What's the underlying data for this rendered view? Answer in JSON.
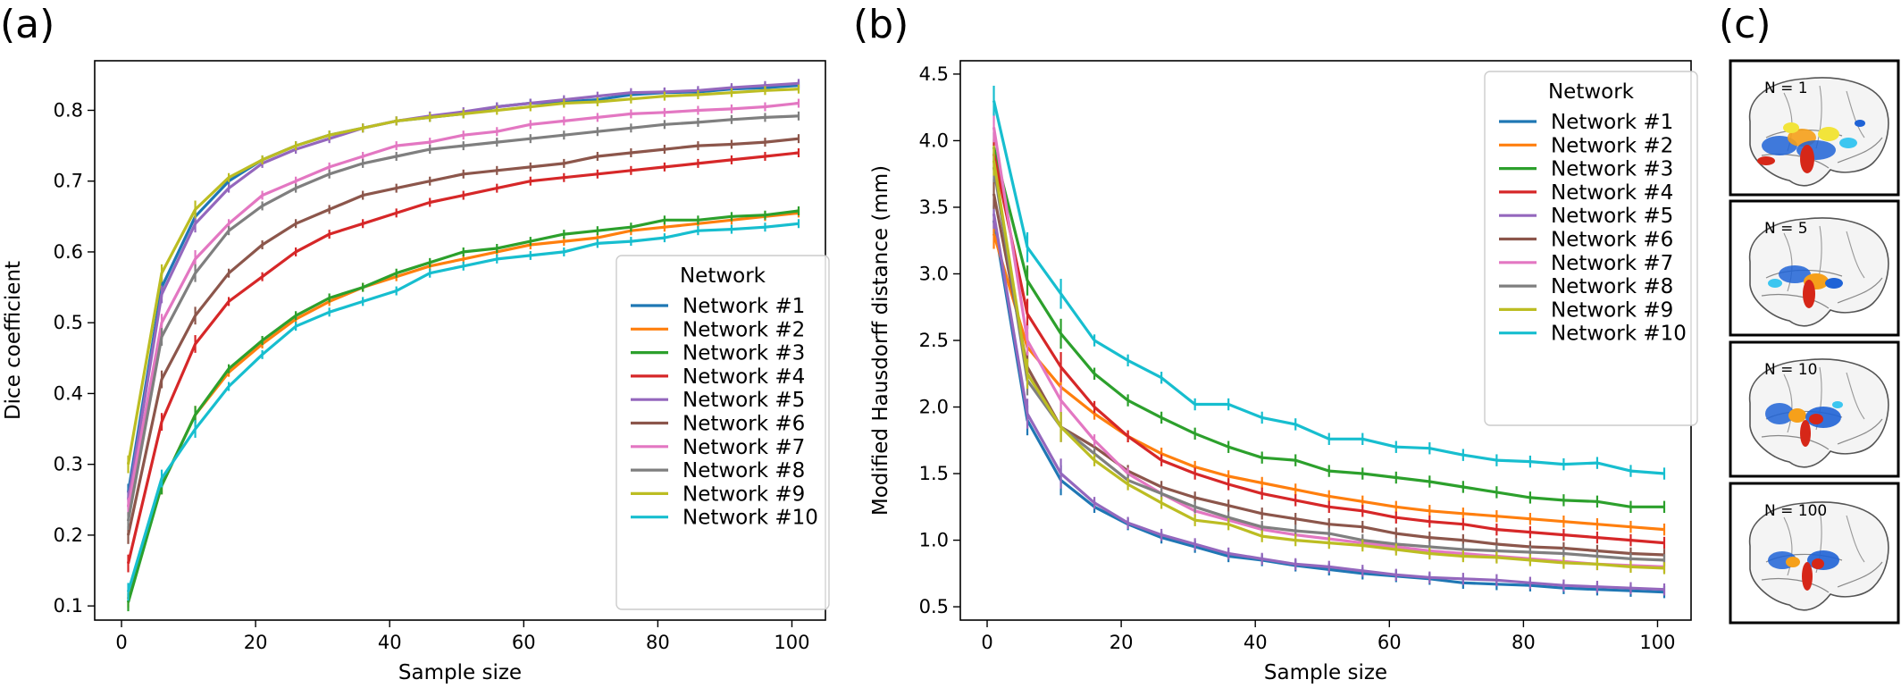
{
  "chart_data": [
    {
      "panel": "(a)",
      "type": "line",
      "xlabel": "Sample size",
      "ylabel": "Dice coefficient",
      "xlim": [
        -4,
        105
      ],
      "ylim": [
        0.08,
        0.87
      ],
      "xticks": [
        0,
        20,
        40,
        60,
        80,
        100
      ],
      "yticks": [
        0.1,
        0.2,
        0.3,
        0.4,
        0.5,
        0.6,
        0.7,
        0.8
      ],
      "x": [
        1,
        6,
        11,
        16,
        21,
        26,
        31,
        36,
        41,
        46,
        51,
        56,
        61,
        66,
        71,
        76,
        81,
        86,
        91,
        96,
        101
      ],
      "legend_title": "Network",
      "legend_position": "lower right",
      "grid": false,
      "series": [
        {
          "name": "Network #1",
          "color": "#1f77b4",
          "values": [
            0.26,
            0.55,
            0.65,
            0.7,
            0.73,
            0.75,
            0.765,
            0.775,
            0.785,
            0.79,
            0.795,
            0.805,
            0.81,
            0.812,
            0.815,
            0.822,
            0.825,
            0.826,
            0.83,
            0.832,
            0.835
          ]
        },
        {
          "name": "Network #2",
          "color": "#ff7f0e",
          "values": [
            0.11,
            0.27,
            0.37,
            0.43,
            0.47,
            0.505,
            0.53,
            0.55,
            0.565,
            0.58,
            0.59,
            0.6,
            0.61,
            0.615,
            0.62,
            0.63,
            0.635,
            0.64,
            0.645,
            0.65,
            0.655
          ]
        },
        {
          "name": "Network #3",
          "color": "#2ca02c",
          "values": [
            0.105,
            0.27,
            0.37,
            0.435,
            0.475,
            0.51,
            0.535,
            0.55,
            0.57,
            0.585,
            0.6,
            0.605,
            0.615,
            0.625,
            0.63,
            0.635,
            0.645,
            0.645,
            0.65,
            0.652,
            0.658
          ]
        },
        {
          "name": "Network #4",
          "color": "#d62728",
          "values": [
            0.16,
            0.36,
            0.47,
            0.53,
            0.565,
            0.6,
            0.625,
            0.64,
            0.655,
            0.67,
            0.68,
            0.69,
            0.7,
            0.705,
            0.71,
            0.715,
            0.72,
            0.725,
            0.73,
            0.735,
            0.74
          ]
        },
        {
          "name": "Network #5",
          "color": "#9467bd",
          "values": [
            0.25,
            0.54,
            0.64,
            0.69,
            0.725,
            0.745,
            0.76,
            0.775,
            0.785,
            0.792,
            0.798,
            0.805,
            0.81,
            0.815,
            0.82,
            0.825,
            0.826,
            0.828,
            0.832,
            0.835,
            0.838
          ]
        },
        {
          "name": "Network #6",
          "color": "#8c564b",
          "values": [
            0.2,
            0.42,
            0.51,
            0.57,
            0.61,
            0.64,
            0.66,
            0.68,
            0.69,
            0.7,
            0.71,
            0.715,
            0.72,
            0.725,
            0.735,
            0.74,
            0.745,
            0.75,
            0.752,
            0.755,
            0.76
          ]
        },
        {
          "name": "Network #7",
          "color": "#e377c2",
          "values": [
            0.24,
            0.5,
            0.59,
            0.64,
            0.68,
            0.7,
            0.72,
            0.735,
            0.75,
            0.755,
            0.765,
            0.77,
            0.78,
            0.785,
            0.79,
            0.795,
            0.797,
            0.8,
            0.802,
            0.805,
            0.81
          ]
        },
        {
          "name": "Network #8",
          "color": "#7f7f7f",
          "values": [
            0.22,
            0.48,
            0.57,
            0.63,
            0.665,
            0.69,
            0.71,
            0.725,
            0.735,
            0.745,
            0.75,
            0.755,
            0.76,
            0.765,
            0.77,
            0.775,
            0.78,
            0.783,
            0.787,
            0.79,
            0.792
          ]
        },
        {
          "name": "Network #9",
          "color": "#bcbd22",
          "values": [
            0.3,
            0.57,
            0.66,
            0.705,
            0.73,
            0.75,
            0.765,
            0.775,
            0.785,
            0.79,
            0.795,
            0.8,
            0.805,
            0.81,
            0.812,
            0.816,
            0.82,
            0.822,
            0.825,
            0.828,
            0.83
          ]
        },
        {
          "name": "Network #10",
          "color": "#17becf",
          "values": [
            0.12,
            0.28,
            0.35,
            0.41,
            0.455,
            0.495,
            0.515,
            0.53,
            0.545,
            0.57,
            0.58,
            0.59,
            0.595,
            0.6,
            0.612,
            0.615,
            0.62,
            0.63,
            0.632,
            0.635,
            0.64
          ]
        }
      ]
    },
    {
      "panel": "(b)",
      "type": "line",
      "xlabel": "Sample size",
      "ylabel": "Modified Hausdorff distance (mm)",
      "xlim": [
        -4,
        105
      ],
      "ylim": [
        0.4,
        4.6
      ],
      "xticks": [
        0,
        20,
        40,
        60,
        80,
        100
      ],
      "yticks": [
        0.5,
        1.0,
        1.5,
        2.0,
        2.5,
        3.0,
        3.5,
        4.0,
        4.5
      ],
      "x": [
        1,
        6,
        11,
        16,
        21,
        26,
        31,
        36,
        41,
        46,
        51,
        56,
        61,
        66,
        71,
        76,
        81,
        86,
        91,
        96,
        101
      ],
      "legend_title": "Network",
      "legend_position": "upper right",
      "grid": false,
      "series": [
        {
          "name": "Network #1",
          "color": "#1f77b4",
          "values": [
            3.4,
            1.9,
            1.45,
            1.25,
            1.12,
            1.02,
            0.95,
            0.88,
            0.85,
            0.81,
            0.78,
            0.75,
            0.73,
            0.71,
            0.68,
            0.67,
            0.66,
            0.64,
            0.63,
            0.62,
            0.61
          ]
        },
        {
          "name": "Network #2",
          "color": "#ff7f0e",
          "values": [
            3.3,
            2.45,
            2.15,
            1.95,
            1.78,
            1.65,
            1.55,
            1.48,
            1.43,
            1.38,
            1.33,
            1.29,
            1.25,
            1.22,
            1.2,
            1.18,
            1.16,
            1.14,
            1.12,
            1.1,
            1.08
          ]
        },
        {
          "name": "Network #3",
          "color": "#2ca02c",
          "values": [
            3.95,
            2.95,
            2.55,
            2.25,
            2.05,
            1.92,
            1.8,
            1.7,
            1.62,
            1.6,
            1.52,
            1.5,
            1.47,
            1.44,
            1.4,
            1.36,
            1.32,
            1.3,
            1.29,
            1.25,
            1.25
          ]
        },
        {
          "name": "Network #4",
          "color": "#d62728",
          "values": [
            3.9,
            2.7,
            2.3,
            2.0,
            1.78,
            1.6,
            1.5,
            1.42,
            1.35,
            1.3,
            1.25,
            1.22,
            1.17,
            1.14,
            1.12,
            1.08,
            1.06,
            1.04,
            1.02,
            1.0,
            0.98
          ]
        },
        {
          "name": "Network #5",
          "color": "#9467bd",
          "values": [
            3.45,
            1.95,
            1.5,
            1.28,
            1.13,
            1.04,
            0.97,
            0.9,
            0.86,
            0.82,
            0.8,
            0.77,
            0.74,
            0.72,
            0.71,
            0.7,
            0.68,
            0.66,
            0.65,
            0.64,
            0.63
          ]
        },
        {
          "name": "Network #6",
          "color": "#8c564b",
          "values": [
            3.6,
            2.3,
            1.85,
            1.7,
            1.52,
            1.4,
            1.32,
            1.26,
            1.2,
            1.16,
            1.12,
            1.1,
            1.05,
            1.02,
            1.0,
            0.97,
            0.95,
            0.94,
            0.92,
            0.9,
            0.89
          ]
        },
        {
          "name": "Network #7",
          "color": "#e377c2",
          "values": [
            4.1,
            2.5,
            2.05,
            1.75,
            1.5,
            1.35,
            1.22,
            1.15,
            1.08,
            1.04,
            1.01,
            0.98,
            0.95,
            0.92,
            0.9,
            0.88,
            0.86,
            0.84,
            0.82,
            0.81,
            0.8
          ]
        },
        {
          "name": "Network #8",
          "color": "#7f7f7f",
          "values": [
            3.8,
            2.2,
            1.85,
            1.65,
            1.45,
            1.35,
            1.25,
            1.17,
            1.1,
            1.07,
            1.05,
            1.0,
            0.97,
            0.95,
            0.93,
            0.92,
            0.91,
            0.9,
            0.88,
            0.86,
            0.85
          ]
        },
        {
          "name": "Network #9",
          "color": "#bcbd22",
          "values": [
            3.85,
            2.25,
            1.85,
            1.6,
            1.42,
            1.28,
            1.15,
            1.12,
            1.03,
            1.0,
            0.98,
            0.96,
            0.93,
            0.9,
            0.88,
            0.87,
            0.85,
            0.83,
            0.82,
            0.8,
            0.79
          ]
        },
        {
          "name": "Network #10",
          "color": "#17becf",
          "values": [
            4.3,
            3.2,
            2.85,
            2.5,
            2.35,
            2.22,
            2.02,
            2.02,
            1.92,
            1.87,
            1.76,
            1.76,
            1.7,
            1.69,
            1.64,
            1.6,
            1.59,
            1.57,
            1.58,
            1.52,
            1.5
          ]
        }
      ]
    }
  ],
  "panel_c": {
    "letter": "(c)",
    "labels": [
      "N = 1",
      "N = 5",
      "N = 10",
      "N = 100"
    ]
  },
  "colors": {
    "axis": "#000000",
    "background": "#ffffff",
    "heat_red": "#d62718",
    "heat_orange": "#f6a01a",
    "heat_yellow": "#f2e43a",
    "heat_blue": "#1f63d6",
    "heat_cyan": "#3cc6f0"
  }
}
